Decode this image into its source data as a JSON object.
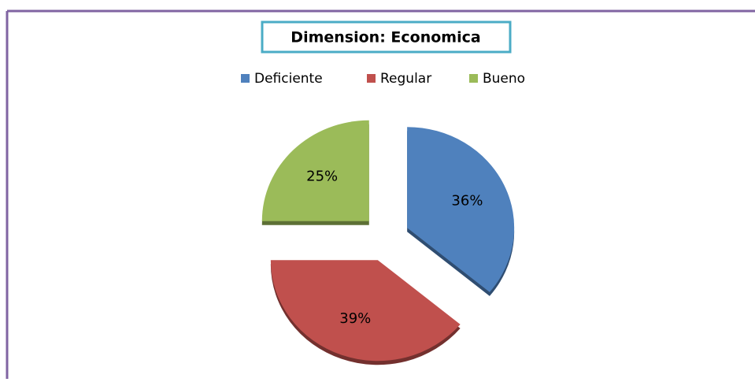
{
  "chart_data": {
    "type": "pie",
    "title": "Dimension: Economica",
    "categories": [
      "Deficiente",
      "Regular",
      "Bueno"
    ],
    "values": [
      36,
      39,
      25
    ],
    "value_labels": [
      "36%",
      "39%",
      "25%"
    ],
    "colors": [
      "#4f81bd",
      "#c0504d",
      "#9bbb59"
    ]
  }
}
